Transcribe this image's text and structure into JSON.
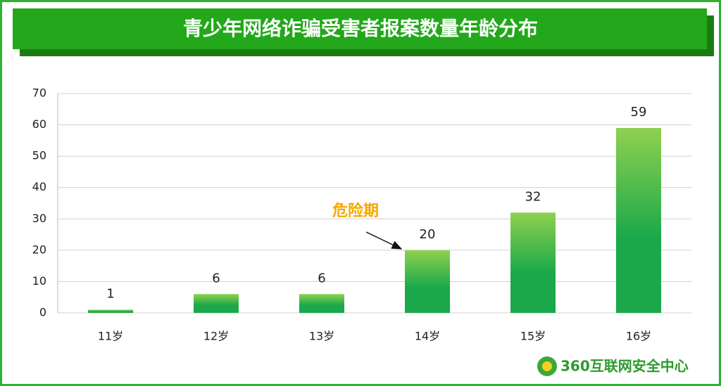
{
  "chart_data": {
    "type": "bar",
    "title": "青少年网络诈骗受害者报案数量年龄分布",
    "categories": [
      "11岁",
      "12岁",
      "13岁",
      "14岁",
      "15岁",
      "16岁"
    ],
    "values": [
      1,
      6,
      6,
      20,
      32,
      59
    ],
    "color": "#1aa84a",
    "ylim": [
      0,
      70
    ],
    "yticks": [
      0,
      10,
      20,
      30,
      40,
      50,
      60,
      70
    ],
    "grid": true,
    "annotation": "危险期"
  },
  "footer": {
    "logo_text": "360互联网安全中心"
  }
}
